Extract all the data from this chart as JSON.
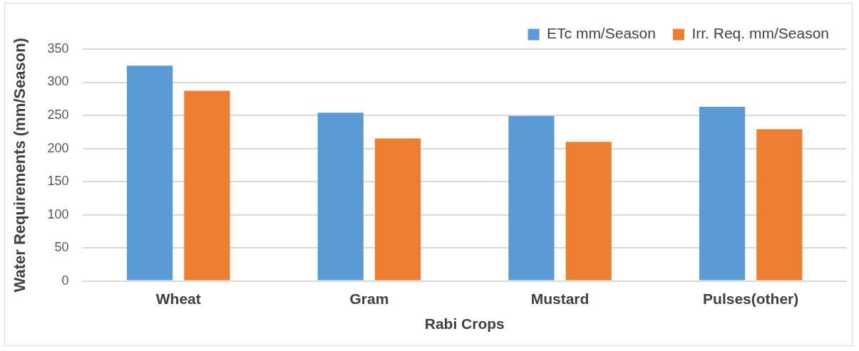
{
  "chart_data": {
    "type": "bar",
    "xlabel": "Rabi Crops",
    "ylabel": "Water Requirements (mm/Season)",
    "categories": [
      "Wheat",
      "Gram",
      "Mustard",
      "Pulses(other)"
    ],
    "series": [
      {
        "name": "ETc mm/Season",
        "color": "#5b9bd5",
        "values": [
          325,
          254,
          249,
          263
        ]
      },
      {
        "name": "Irr. Req. mm/Season",
        "color": "#ed7d31",
        "values": [
          287,
          215,
          210,
          229
        ]
      }
    ],
    "ylim": [
      0,
      350
    ],
    "yticks": [
      0,
      50,
      100,
      150,
      200,
      250,
      300,
      350
    ],
    "grid": "y",
    "legend": "top right"
  }
}
